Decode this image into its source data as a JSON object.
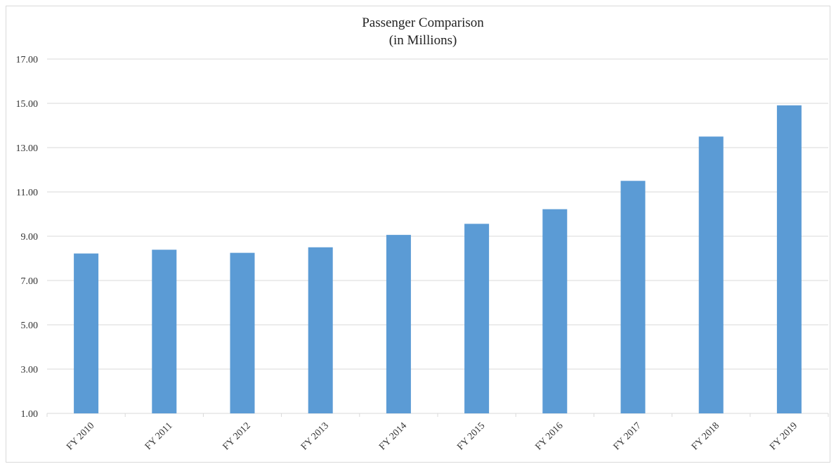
{
  "chart_data": {
    "type": "bar",
    "title": "Passenger Comparison",
    "subtitle": "(in Millions)",
    "categories": [
      "FY 2010",
      "FY 2011",
      "FY 2012",
      "FY 2013",
      "FY 2014",
      "FY 2015",
      "FY 2016",
      "FY 2017",
      "FY 2018",
      "FY 2019"
    ],
    "values": [
      8.22,
      8.39,
      8.25,
      8.5,
      9.06,
      9.56,
      10.22,
      11.5,
      13.5,
      14.91
    ],
    "ylim": [
      1,
      17
    ],
    "yticks": [
      "1.00",
      "3.00",
      "5.00",
      "7.00",
      "9.00",
      "11.00",
      "13.00",
      "15.00",
      "17.00"
    ],
    "xlabel": "",
    "ylabel": "",
    "grid": true,
    "bar_color": "#5b9bd5",
    "grid_color": "#d9d9d9"
  }
}
